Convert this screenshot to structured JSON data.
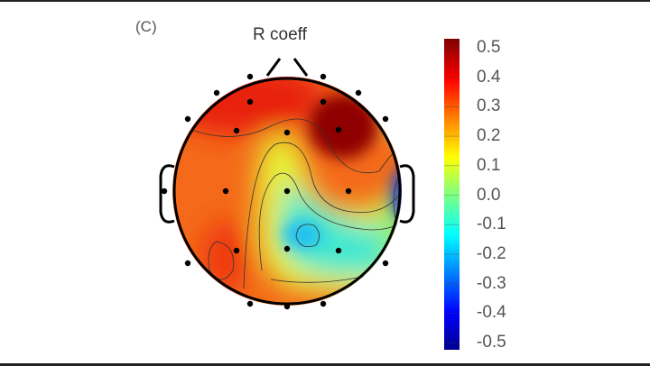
{
  "chart_data": {
    "type": "heatmap",
    "subtype": "scalp-topography",
    "panel_label": "(C)",
    "title": "R coeff",
    "colorbar": {
      "range": [
        -0.5,
        0.5
      ],
      "ticks": [
        "0.5",
        "0.4",
        "0.3",
        "0.2",
        "0.1",
        "0.0",
        "-0.1",
        "-0.2",
        "-0.3",
        "-0.4",
        "-0.5"
      ],
      "colormap": "jet"
    },
    "regions": [
      {
        "name": "right-frontal",
        "value": 0.5
      },
      {
        "name": "left-frontal",
        "value": 0.4
      },
      {
        "name": "left-temporal",
        "value": 0.3
      },
      {
        "name": "left-occipital",
        "value": 0.35
      },
      {
        "name": "central-parietal",
        "value": -0.15
      },
      {
        "name": "right-temporal",
        "value": -0.4
      }
    ],
    "electrode_count": 23
  }
}
